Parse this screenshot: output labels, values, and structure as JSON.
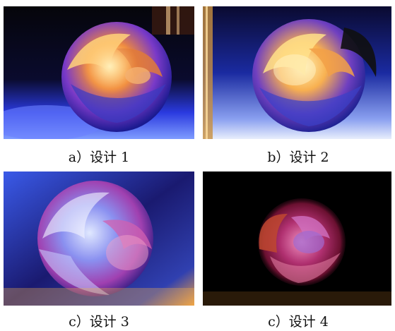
{
  "figures": [
    {
      "caption": "a）设计 1"
    },
    {
      "caption": "b）设计 2"
    },
    {
      "caption": "c）设计 3"
    },
    {
      "caption": "c）设计 4"
    }
  ]
}
